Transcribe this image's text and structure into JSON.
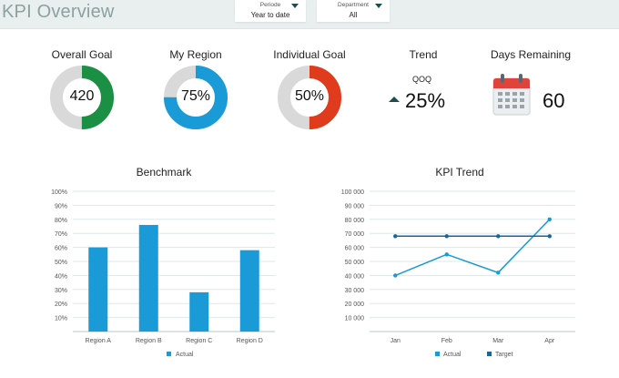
{
  "header": {
    "title": "KPI Overview",
    "filters": [
      {
        "label": "Periode",
        "value": "Year to date"
      },
      {
        "label": "Department",
        "value": "All"
      }
    ]
  },
  "kpis": {
    "overall_goal": {
      "title": "Overall Goal",
      "value": "420",
      "fraction": 0.5,
      "color": "#1b8f44"
    },
    "my_region": {
      "title": "My Region",
      "value": "75%",
      "fraction": 0.75,
      "color": "#1a9ad7"
    },
    "individual_goal": {
      "title": "Individual Goal",
      "value": "50%",
      "fraction": 0.5,
      "color": "#e03b1c"
    },
    "trend": {
      "title": "Trend",
      "subtitle": "QOQ",
      "value": "25%",
      "arrow_color": "#1e4d4d"
    },
    "days_remaining": {
      "title": "Days Remaining",
      "value": "60"
    }
  },
  "colors": {
    "track": "#d9d9d9",
    "bar": "#1a9ad7",
    "actual": "#1a9ad7",
    "target": "#1565a0",
    "grid": "#dde8ea"
  },
  "chart_data": [
    {
      "type": "bar",
      "title": "Benchmark",
      "categories": [
        "Region A",
        "Region B",
        "Region C",
        "Region D"
      ],
      "series": [
        {
          "name": "Actual",
          "values": [
            60,
            76,
            28,
            58
          ]
        }
      ],
      "ylim": [
        0,
        100
      ],
      "yticks": [
        "10%",
        "20%",
        "30%",
        "40%",
        "50%",
        "60%",
        "70%",
        "80%",
        "90%",
        "100%"
      ],
      "legend": "bottom"
    },
    {
      "type": "line",
      "title": "KPI Trend",
      "categories": [
        "Jan",
        "Feb",
        "Mar",
        "Apr"
      ],
      "series": [
        {
          "name": "Actual",
          "values": [
            40000,
            55000,
            42000,
            80000
          ]
        },
        {
          "name": "Target",
          "values": [
            68000,
            68000,
            68000,
            68000
          ]
        }
      ],
      "ylim": [
        0,
        100000
      ],
      "yticks": [
        "10 000",
        "20 000",
        "30 000",
        "40 000",
        "50 000",
        "60 000",
        "70 000",
        "80 000",
        "90 000",
        "100 000"
      ],
      "legend": "bottom"
    }
  ]
}
